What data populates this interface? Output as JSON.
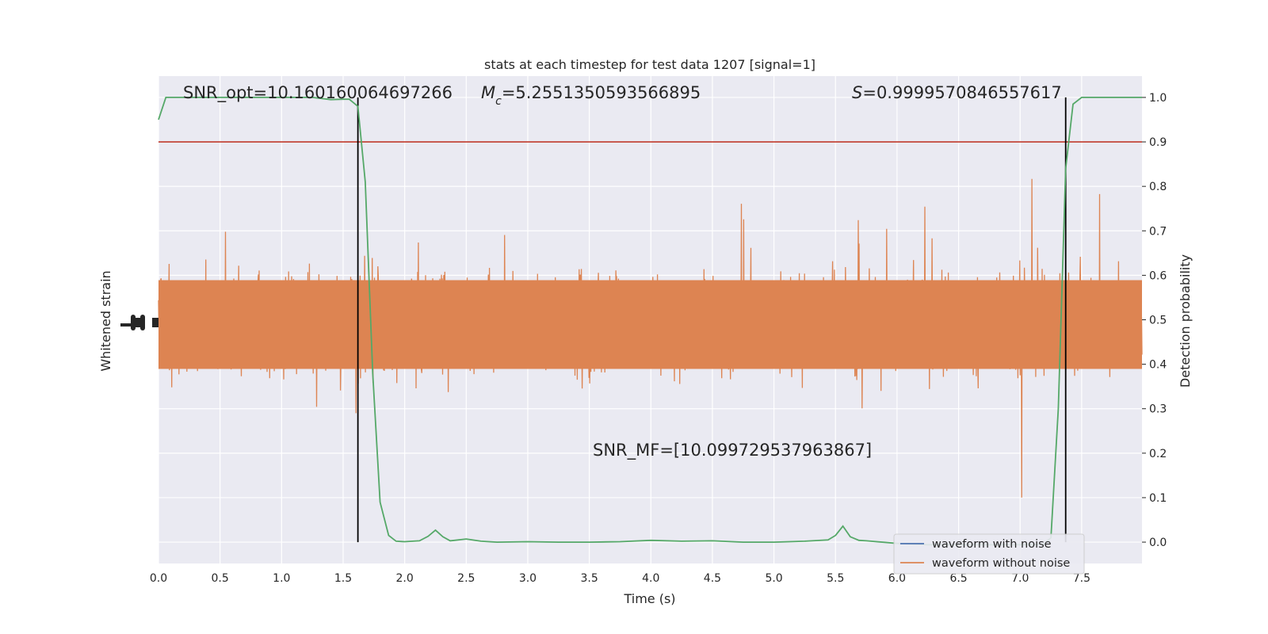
{
  "chart_data": {
    "type": "line",
    "title": "stats at each timestep for test data 1207 [signal=1]",
    "xlabel": "Time (s)",
    "ylabel_left": "Whitened strain",
    "ylabel_right": "Detection probability",
    "xlim": [
      0.0,
      7.99
    ],
    "ylim_right": [
      -0.048,
      1.048
    ],
    "x_ticks": [
      "0.0",
      "0.5",
      "1.0",
      "1.5",
      "2.0",
      "2.5",
      "3.0",
      "3.5",
      "4.0",
      "4.5",
      "5.0",
      "5.5",
      "6.0",
      "6.5",
      "7.0",
      "7.5"
    ],
    "y_ticks_right": [
      "0.0",
      "0.1",
      "0.2",
      "0.3",
      "0.4",
      "0.5",
      "0.6",
      "0.7",
      "0.8",
      "0.9",
      "1.0"
    ],
    "grid": true,
    "legend_position": "lower-right",
    "annotations": [
      {
        "text": "SNR_opt=10.160160064697266"
      },
      {
        "text": "=5.2551350593566895",
        "symbol": "M",
        "sub": "c"
      },
      {
        "text": "=0.9999570846557617",
        "symbol": "S"
      },
      {
        "text": "SNR_MF=[10.099729537963867]"
      }
    ],
    "threshold": {
      "y": 0.9,
      "color": "#c0392b"
    },
    "vertical_lines": [
      1.62,
      7.37
    ],
    "series": [
      {
        "name": "waveform with noise",
        "color": "#4c72b0",
        "kind": "strain"
      },
      {
        "name": "waveform without noise",
        "color": "#dd8452",
        "kind": "strain"
      },
      {
        "color": "#55a868",
        "kind": "probability",
        "x": [
          0.0,
          0.06,
          0.25,
          0.5,
          0.75,
          1.0,
          1.25,
          1.4,
          1.5,
          1.55,
          1.62,
          1.68,
          1.74,
          1.8,
          1.87,
          1.93,
          2.0,
          2.12,
          2.19,
          2.25,
          2.31,
          2.37,
          2.5,
          2.62,
          2.75,
          3.0,
          3.25,
          3.5,
          3.75,
          4.0,
          4.25,
          4.5,
          4.75,
          5.0,
          5.25,
          5.44,
          5.5,
          5.56,
          5.62,
          5.69,
          5.75,
          6.0,
          6.25,
          6.5,
          6.75,
          7.0,
          7.19,
          7.25,
          7.31,
          7.37,
          7.43,
          7.5,
          7.75,
          7.99
        ],
        "y": [
          0.95,
          1.0,
          1.0,
          1.0,
          1.0,
          1.0,
          1.0,
          0.995,
          0.996,
          0.996,
          0.98,
          0.81,
          0.38,
          0.09,
          0.015,
          0.002,
          0.001,
          0.003,
          0.013,
          0.027,
          0.012,
          0.003,
          0.007,
          0.002,
          0.0,
          0.001,
          0.0,
          0.0,
          0.001,
          0.004,
          0.002,
          0.003,
          0.0,
          0.0,
          0.002,
          0.005,
          0.015,
          0.036,
          0.012,
          0.004,
          0.003,
          -0.003,
          -0.006,
          -0.006,
          -0.006,
          -0.006,
          -0.005,
          0.01,
          0.3,
          0.84,
          0.985,
          1.0,
          1.0,
          1.0
        ]
      }
    ]
  }
}
